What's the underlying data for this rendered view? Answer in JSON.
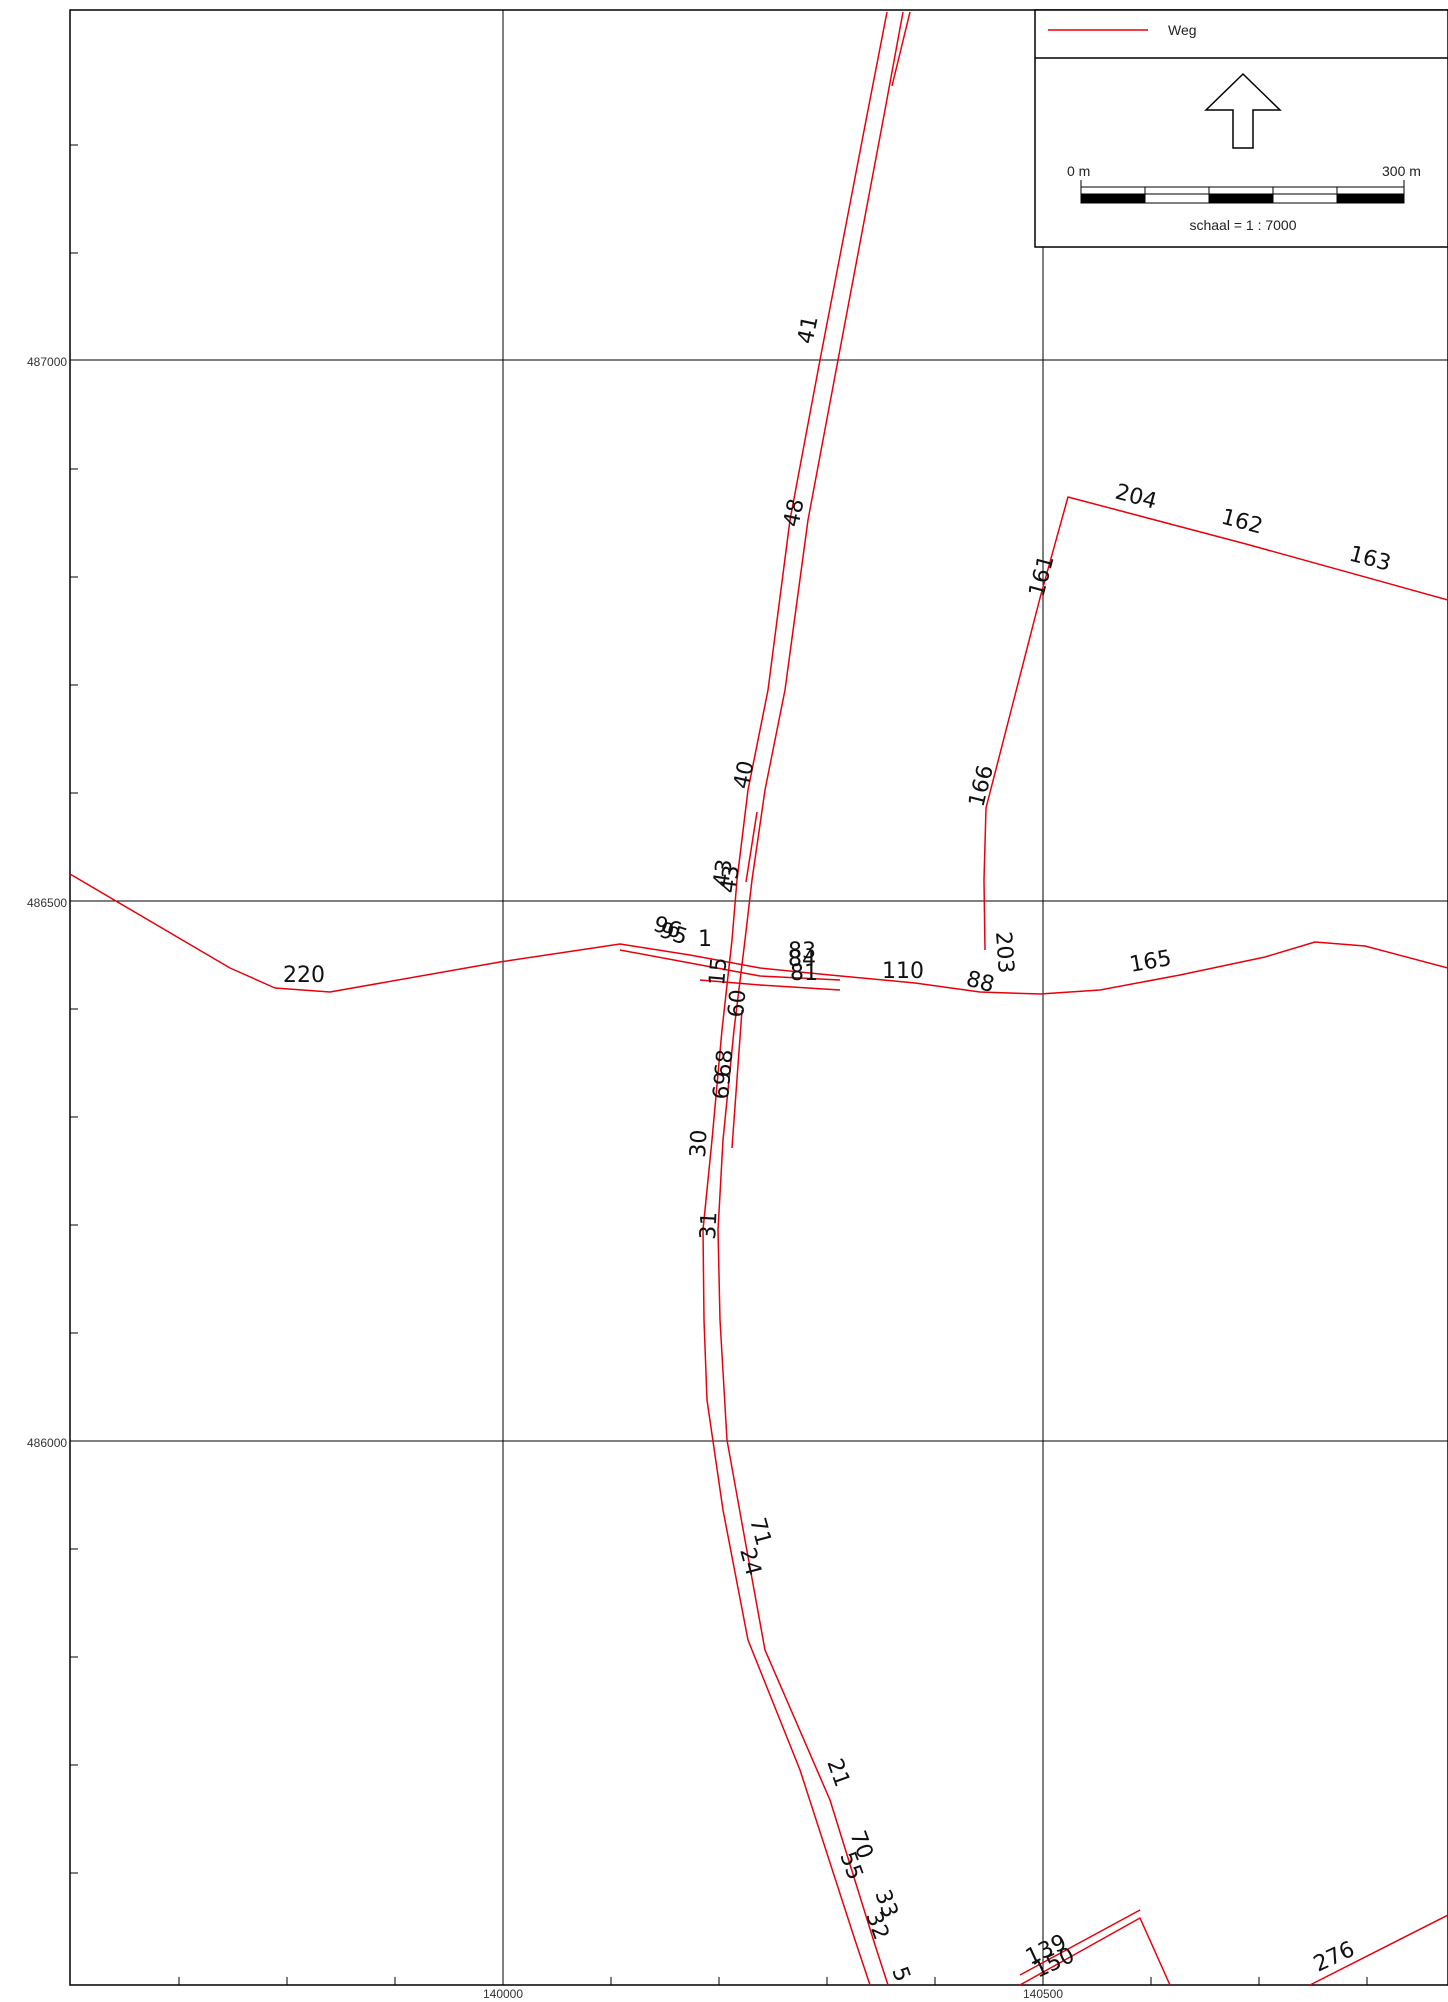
{
  "map": {
    "y_ticks": [
      "487000",
      "486500",
      "486000"
    ],
    "x_ticks": [
      "140000",
      "140500"
    ],
    "legend": {
      "road_label": "Weg",
      "road_color": "#e8000b",
      "north_arrow_icon": "north-arrow-icon",
      "scale_start": "0 m",
      "scale_end": "300 m",
      "scale_text": "schaal = 1 : 7000"
    },
    "road_labels": [
      "41",
      "48",
      "40",
      "43",
      "43",
      "161",
      "166",
      "204",
      "162",
      "163",
      "203",
      "165",
      "110",
      "88",
      "83",
      "84",
      "81",
      "220",
      "95",
      "96",
      "1",
      "15",
      "60",
      "68",
      "69",
      "30",
      "31",
      "71",
      "24",
      "21",
      "70",
      "55",
      "33",
      "32",
      "139",
      "150",
      "276",
      "5"
    ]
  }
}
